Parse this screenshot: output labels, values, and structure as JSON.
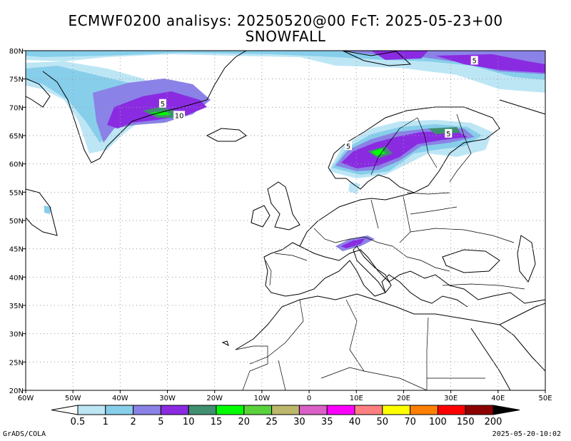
{
  "title": {
    "line1": "ECMWF0200 analisys: 20250520@00 FcT: 2025-05-23+00",
    "line2": "SNOWFALL"
  },
  "map": {
    "lon_range": [
      -60,
      50
    ],
    "lat_range": [
      20,
      80
    ],
    "lon_ticks": [
      {
        "lon": -60,
        "label": "60W"
      },
      {
        "lon": -50,
        "label": "50W"
      },
      {
        "lon": -40,
        "label": "40W"
      },
      {
        "lon": -30,
        "label": "30W"
      },
      {
        "lon": -20,
        "label": "20W"
      },
      {
        "lon": -10,
        "label": "10W"
      },
      {
        "lon": 0,
        "label": "0"
      },
      {
        "lon": 10,
        "label": "10E"
      },
      {
        "lon": 20,
        "label": "20E"
      },
      {
        "lon": 30,
        "label": "30E"
      },
      {
        "lon": 40,
        "label": "40E"
      },
      {
        "lon": 50,
        "label": "50E"
      }
    ],
    "lat_ticks": [
      {
        "lat": 20,
        "label": "20N"
      },
      {
        "lat": 25,
        "label": "25N"
      },
      {
        "lat": 30,
        "label": "30N"
      },
      {
        "lat": 35,
        "label": "35N"
      },
      {
        "lat": 40,
        "label": "40N"
      },
      {
        "lat": 45,
        "label": "45N"
      },
      {
        "lat": 50,
        "label": "50N"
      },
      {
        "lat": 55,
        "label": "55N"
      },
      {
        "lat": 60,
        "label": "60N"
      },
      {
        "lat": 65,
        "label": "65N"
      },
      {
        "lat": 70,
        "label": "70N"
      },
      {
        "lat": 75,
        "label": "75N"
      },
      {
        "lat": 80,
        "label": "80N"
      }
    ],
    "grid": true,
    "contour_labels": [
      {
        "lon": 35,
        "lat": 78.3,
        "text": "5"
      },
      {
        "lon": -31,
        "lat": 70.7,
        "text": "5"
      },
      {
        "lon": -27.5,
        "lat": 68.6,
        "text": "10"
      },
      {
        "lon": 8.3,
        "lat": 63.2,
        "text": "5"
      },
      {
        "lon": 29.5,
        "lat": 65.4,
        "text": "5"
      }
    ]
  },
  "colorbar": {
    "levels": [
      "0.5",
      "1",
      "2",
      "5",
      "10",
      "15",
      "20",
      "25",
      "30",
      "35",
      "40",
      "50",
      "70",
      "100",
      "150",
      "200"
    ],
    "colors": [
      "#ffffff",
      "#bde6f5",
      "#87ceeb",
      "#8a82e6",
      "#8a2be2",
      "#3f8f70",
      "#00ff00",
      "#5ad23c",
      "#bdb76b",
      "#da60c8",
      "#ff00ff",
      "#ff8080",
      "#ffff00",
      "#ff8000",
      "#ff0000",
      "#8b0000",
      "#000000"
    ]
  },
  "footer": {
    "left": "GrADS/COLA",
    "right": "2025-05-20-10:02"
  }
}
